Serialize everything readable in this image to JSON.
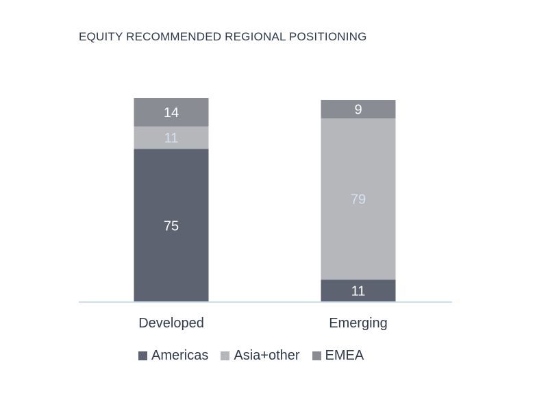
{
  "chart_data": {
    "type": "bar",
    "stacked": true,
    "title": "EQUITY RECOMMENDED REGIONAL POSITIONING",
    "categories": [
      "Developed",
      "Emerging"
    ],
    "series": [
      {
        "name": "Americas",
        "values": [
          75,
          11
        ],
        "color": "#5d6371",
        "label_color": "#ffffff"
      },
      {
        "name": "Asia+other",
        "values": [
          11,
          79
        ],
        "color": "#b5b7bb",
        "label_color": "#d5e2f2"
      },
      {
        "name": "EMEA",
        "values": [
          14,
          9
        ],
        "color": "#8a8c94",
        "label_color": "#ffffff"
      }
    ],
    "ylim": [
      0,
      100
    ],
    "grid": false,
    "legend_position": "bottom",
    "axis_color": "#c9dff0"
  }
}
